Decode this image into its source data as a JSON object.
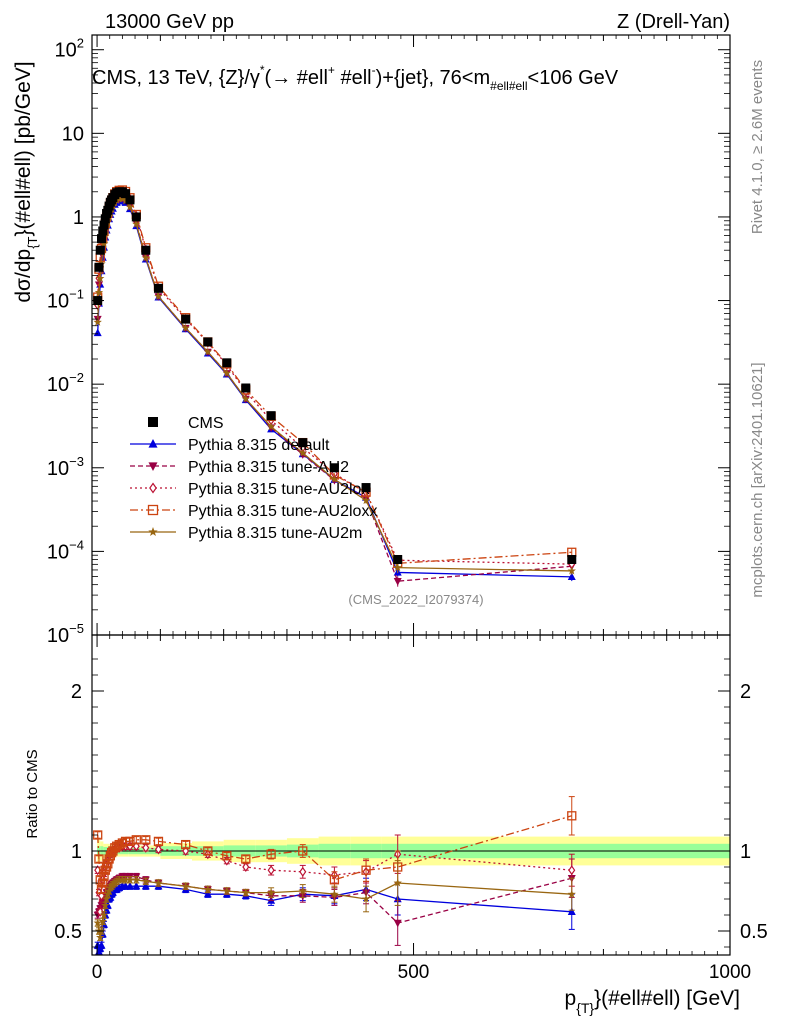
{
  "header": {
    "left": "13000 GeV pp",
    "right": "Z (Drell-Yan)"
  },
  "side": {
    "rivet": "Rivet 4.1.0, ≥ 2.6M events",
    "mcplots": "mcplots.cern.ch [arXiv:2401.10621]"
  },
  "chart_data": {
    "type": "line",
    "title": "CMS, 13 TeV, {Z}/γ*(→ #ell+ #ell-)+{jet}, 76<m_#ell#ell<106 GeV",
    "title_parts": {
      "a": "CMS, 13 TeV, {Z}/γ",
      "star": "*",
      "b": "(→  #ell",
      "plus": "+",
      "c": " #ell",
      "minus": "-",
      "d": ")+{jet}, 76<m",
      "sub": "#ell#ell",
      "e": "<106 GeV"
    },
    "analysis_id": "(CMS_2022_I2079374)",
    "xlabel": "p_{T}(#ell#ell) [GeV]",
    "xlabel_parts": {
      "p": "p",
      "sub": "{T}",
      "rest": "}(#ell#ell) [GeV]"
    },
    "ylabel": "dσ/dp_{T}(#ell#ell) [pb/GeV]",
    "ylabel_parts": {
      "a": "dσ/dp",
      "sub": "{T",
      "b": "}(#ell#ell) [pb/GeV]"
    },
    "ratio_ylabel": "Ratio to CMS",
    "xlim": [
      -8,
      1000
    ],
    "ylim_log": [
      1e-05,
      150
    ],
    "ratio_ylim": [
      0.35,
      2.35
    ],
    "x_ticks": [
      0,
      500,
      1000
    ],
    "y_ticks": [
      {
        "value": 1e-05,
        "base": "10",
        "exp": "−5"
      },
      {
        "value": 0.0001,
        "base": "10",
        "exp": "−4"
      },
      {
        "value": 0.001,
        "base": "10",
        "exp": "−3"
      },
      {
        "value": 0.01,
        "base": "10",
        "exp": "−2"
      },
      {
        "value": 0.1,
        "base": "10",
        "exp": "−1"
      },
      {
        "value": 1,
        "base": "1",
        "exp": ""
      },
      {
        "value": 10,
        "base": "10",
        "exp": ""
      },
      {
        "value": 100,
        "base": "10",
        "exp": "2"
      }
    ],
    "ratio_ticks": [
      0.5,
      1,
      2
    ],
    "ratio_tick_labels": [
      "0.5",
      "1",
      "2"
    ],
    "x": [
      1,
      3,
      5,
      7,
      9,
      11,
      13,
      15,
      17,
      19,
      21,
      23,
      25,
      28,
      31,
      35,
      40,
      45,
      52,
      62,
      77,
      97,
      140,
      175,
      205,
      235,
      275,
      325,
      375,
      425,
      475,
      750
    ],
    "data": {
      "name": "CMS",
      "values": [
        0.1,
        0.25,
        0.4,
        0.55,
        0.68,
        0.8,
        0.95,
        1.1,
        1.2,
        1.35,
        1.5,
        1.6,
        1.7,
        1.85,
        1.95,
        2.0,
        2.0,
        1.9,
        1.6,
        1.0,
        0.4,
        0.14,
        0.06,
        0.032,
        0.018,
        0.009,
        0.0042,
        0.002,
        0.001,
        0.00058,
        8e-05,
        8e-05
      ],
      "err_frac": 0.04
    },
    "band_edges": [
      0,
      5,
      10,
      20,
      30,
      50,
      100,
      150,
      200,
      250,
      300,
      350,
      400,
      450,
      1000
    ],
    "band_green": [
      0.03,
      0.03,
      0.025,
      0.025,
      0.02,
      0.02,
      0.03,
      0.03,
      0.035,
      0.035,
      0.04,
      0.045,
      0.045,
      0.045
    ],
    "band_yellow": [
      0.07,
      0.06,
      0.045,
      0.04,
      0.035,
      0.035,
      0.05,
      0.06,
      0.07,
      0.07,
      0.08,
      0.09,
      0.09,
      0.09
    ],
    "series": [
      {
        "name": "Pythia 8.315 default",
        "color": "#0000dd",
        "marker": "triangle-up",
        "dash": "",
        "ratio": [
          0.41,
          0.37,
          0.39,
          0.41,
          0.48,
          0.54,
          0.6,
          0.63,
          0.66,
          0.7,
          0.71,
          0.73,
          0.74,
          0.76,
          0.76,
          0.77,
          0.78,
          0.78,
          0.78,
          0.78,
          0.78,
          0.78,
          0.76,
          0.73,
          0.73,
          0.72,
          0.69,
          0.73,
          0.72,
          0.76,
          0.7,
          0.62
        ],
        "err": [
          0.02,
          0.02,
          0.02,
          0.02,
          0.02,
          0.02,
          0.02,
          0.02,
          0.02,
          0.02,
          0.02,
          0.02,
          0.02,
          0.02,
          0.02,
          0.02,
          0.02,
          0.02,
          0.02,
          0.02,
          0.02,
          0.02,
          0.02,
          0.02,
          0.02,
          0.02,
          0.03,
          0.04,
          0.05,
          0.07,
          0.1,
          0.11
        ]
      },
      {
        "name": "Pythia 8.315 tune-AU2",
        "color": "#990044",
        "marker": "triangle-down",
        "dash": "5,3",
        "ratio": [
          0.6,
          0.62,
          0.64,
          0.66,
          0.68,
          0.7,
          0.72,
          0.74,
          0.76,
          0.77,
          0.78,
          0.79,
          0.8,
          0.81,
          0.82,
          0.83,
          0.84,
          0.84,
          0.84,
          0.84,
          0.82,
          0.8,
          0.78,
          0.76,
          0.75,
          0.74,
          0.72,
          0.72,
          0.71,
          0.74,
          0.55,
          0.83
        ],
        "err": [
          0.02,
          0.02,
          0.02,
          0.02,
          0.02,
          0.02,
          0.02,
          0.02,
          0.02,
          0.02,
          0.02,
          0.02,
          0.02,
          0.02,
          0.02,
          0.02,
          0.02,
          0.02,
          0.02,
          0.02,
          0.02,
          0.02,
          0.02,
          0.02,
          0.02,
          0.02,
          0.03,
          0.04,
          0.05,
          0.07,
          0.14,
          0.12
        ]
      },
      {
        "name": "Pythia 8.315 tune-AU2lox",
        "color": "#bb1133",
        "marker": "diamond-open",
        "dash": "2,3",
        "ratio": [
          0.88,
          0.74,
          0.62,
          0.72,
          0.82,
          0.86,
          0.9,
          0.92,
          0.95,
          0.97,
          0.98,
          0.99,
          1.0,
          1.01,
          1.02,
          1.02,
          1.03,
          1.03,
          1.03,
          1.03,
          1.02,
          1.01,
          1.0,
          0.98,
          0.94,
          0.9,
          0.88,
          0.87,
          0.85,
          0.87,
          0.98,
          0.88
        ],
        "err": [
          0.02,
          0.02,
          0.02,
          0.02,
          0.02,
          0.02,
          0.02,
          0.02,
          0.02,
          0.02,
          0.02,
          0.02,
          0.02,
          0.02,
          0.02,
          0.02,
          0.02,
          0.02,
          0.02,
          0.02,
          0.02,
          0.02,
          0.02,
          0.02,
          0.02,
          0.02,
          0.03,
          0.04,
          0.05,
          0.07,
          0.12,
          0.1
        ]
      },
      {
        "name": "Pythia 8.315 tune-AU2loxx",
        "color": "#cc4411",
        "marker": "square-open",
        "dash": "8,3,2,3",
        "ratio": [
          1.1,
          0.95,
          0.82,
          0.76,
          0.8,
          0.84,
          0.88,
          0.9,
          0.92,
          0.95,
          0.97,
          0.99,
          1.0,
          1.02,
          1.03,
          1.04,
          1.05,
          1.06,
          1.06,
          1.07,
          1.07,
          1.06,
          1.04,
          1.0,
          0.97,
          0.95,
          0.98,
          1.0,
          0.82,
          0.88,
          0.9,
          1.22
        ],
        "err": [
          0.02,
          0.02,
          0.02,
          0.02,
          0.02,
          0.02,
          0.02,
          0.02,
          0.02,
          0.02,
          0.02,
          0.02,
          0.02,
          0.02,
          0.02,
          0.02,
          0.02,
          0.02,
          0.02,
          0.02,
          0.02,
          0.02,
          0.02,
          0.02,
          0.02,
          0.02,
          0.03,
          0.04,
          0.05,
          0.07,
          0.1,
          0.12
        ]
      },
      {
        "name": "Pythia 8.315 tune-AU2m",
        "color": "#996611",
        "marker": "star",
        "dash": "",
        "ratio": [
          0.55,
          0.5,
          0.46,
          0.5,
          0.56,
          0.6,
          0.66,
          0.7,
          0.73,
          0.75,
          0.77,
          0.78,
          0.79,
          0.8,
          0.81,
          0.82,
          0.82,
          0.82,
          0.82,
          0.82,
          0.81,
          0.8,
          0.78,
          0.76,
          0.75,
          0.74,
          0.74,
          0.75,
          0.73,
          0.7,
          0.8,
          0.73
        ],
        "err": [
          0.02,
          0.02,
          0.02,
          0.02,
          0.02,
          0.02,
          0.02,
          0.02,
          0.02,
          0.02,
          0.02,
          0.02,
          0.02,
          0.02,
          0.02,
          0.02,
          0.02,
          0.02,
          0.02,
          0.02,
          0.02,
          0.02,
          0.02,
          0.02,
          0.02,
          0.02,
          0.03,
          0.04,
          0.05,
          0.08,
          0.14,
          0.1
        ]
      }
    ]
  }
}
